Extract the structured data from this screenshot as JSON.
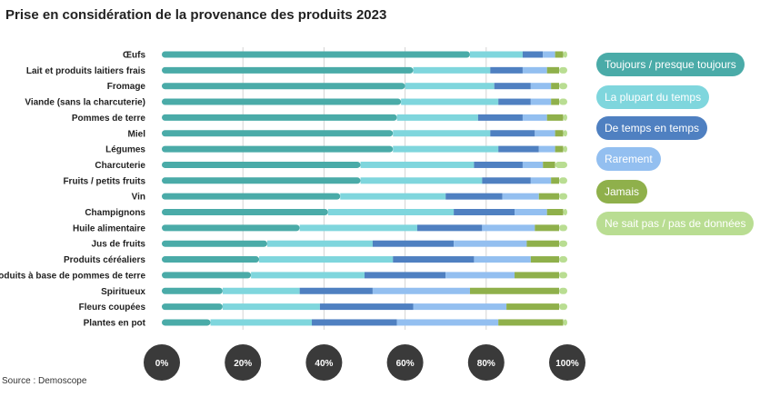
{
  "chart_data": {
    "type": "bar",
    "orientation": "horizontal",
    "stacked": true,
    "title": "Prise en considération de la provenance des produits 2023",
    "source": "Source : Demoscope",
    "xlim": [
      0,
      100
    ],
    "x_ticks": [
      "0%",
      "20%",
      "40%",
      "60%",
      "80%",
      "100%"
    ],
    "x_tick_values": [
      0,
      20,
      40,
      60,
      80,
      100
    ],
    "grid": true,
    "legend_position": "right",
    "categories": [
      "Œufs",
      "Lait et produits laitiers frais",
      "Fromage",
      "Viande (sans la charcuterie)",
      "Pommes de terre",
      "Miel",
      "Légumes",
      "Charcuterie",
      "Fruits / petits fruits",
      "Vin",
      "Champignons",
      "Huile alimentaire",
      "Jus de fruits",
      "Produits céréaliers",
      "Produits à base de pommes de terre",
      "Spiritueux",
      "Fleurs coupées",
      "Plantes en pot"
    ],
    "series": [
      {
        "name": "Toujours / presque toujours",
        "color": "#4aaba8",
        "values": [
          76,
          62,
          60,
          59,
          58,
          57,
          57,
          49,
          49,
          44,
          41,
          34,
          26,
          24,
          22,
          15,
          15,
          12
        ]
      },
      {
        "name": "La plupart du temps",
        "color": "#7fd6dd",
        "values": [
          13,
          19,
          22,
          24,
          20,
          24,
          26,
          28,
          30,
          26,
          31,
          29,
          26,
          33,
          28,
          19,
          24,
          25
        ]
      },
      {
        "name": "De temps en temps",
        "color": "#4f80c1",
        "values": [
          5,
          8,
          9,
          8,
          11,
          11,
          10,
          12,
          12,
          14,
          15,
          16,
          20,
          20,
          20,
          18,
          23,
          21
        ]
      },
      {
        "name": "Rarement",
        "color": "#93bff0",
        "values": [
          3,
          6,
          5,
          5,
          6,
          5,
          4,
          5,
          5,
          9,
          8,
          13,
          18,
          14,
          17,
          24,
          23,
          25
        ]
      },
      {
        "name": "Jamais",
        "color": "#8fb04b",
        "values": [
          2,
          3,
          2,
          2,
          4,
          2,
          2,
          3,
          2,
          5,
          4,
          6,
          8,
          7,
          11,
          22,
          13,
          16
        ]
      },
      {
        "name": "Ne sait pas / pas de données",
        "color": "#b9dd92",
        "values": [
          1,
          2,
          2,
          2,
          1,
          1,
          1,
          3,
          2,
          2,
          1,
          2,
          2,
          2,
          2,
          2,
          2,
          1
        ]
      }
    ]
  },
  "legend_colors": {
    "Toujours / presque toujours": {
      "text": "#ffffff"
    },
    "La plupart du temps": {
      "text": "#ffffff"
    },
    "De temps en temps": {
      "text": "#ffffff"
    },
    "Rarement": {
      "text": "#ffffff"
    },
    "Jamais": {
      "text": "#ffffff"
    },
    "Ne sait pas / pas de données": {
      "text": "#ffffff"
    }
  },
  "tick_circle_color": "#3a3a3a"
}
